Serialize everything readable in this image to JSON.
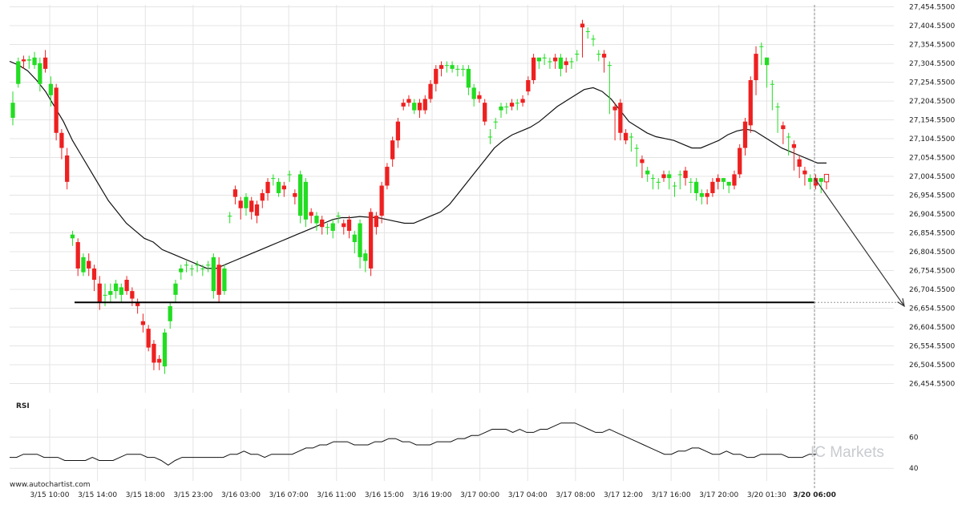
{
  "branding": {
    "site": "www.autochartist.com",
    "watermark": "IC Markets"
  },
  "colors": {
    "bull": "#22dd22",
    "bear": "#ee2020",
    "line": "#111111",
    "grid": "#e4e4e4",
    "arrow": "#333333"
  },
  "chart_data": [
    {
      "type": "candlestick",
      "title": "",
      "y_ticks": [
        "27,454.5500",
        "27,404.5500",
        "27,354.5500",
        "27,304.5500",
        "27,254.5500",
        "27,204.5500",
        "27,154.5500",
        "27,104.5500",
        "27,054.5500",
        "27,004.5500",
        "26,954.5500",
        "26,904.5500",
        "26,854.5500",
        "26,804.5500",
        "26,754.5500",
        "26,704.5500",
        "26,654.5500",
        "26,604.5500",
        "26,554.5500",
        "26,504.5500",
        "26,454.5500"
      ],
      "ylim": [
        26430,
        27460
      ],
      "x_ticks": [
        "3/15 10:00",
        "3/15 14:00",
        "3/15 18:00",
        "3/15 23:00",
        "3/16 03:00",
        "3/16 07:00",
        "3/16 11:00",
        "3/16 15:00",
        "3/16 19:00",
        "3/17 00:00",
        "3/17 04:00",
        "3/17 08:00",
        "3/17 12:00",
        "3/17 16:00",
        "3/17 20:00",
        "3/20 01:30",
        "3/20 06:00"
      ],
      "grid": true,
      "close": [
        27200,
        27310,
        27310,
        27315,
        27320,
        27305,
        27290,
        27250,
        27120,
        27080,
        26990,
        26850,
        26760,
        26790,
        26760,
        26730,
        26670,
        26690,
        26700,
        26720,
        26710,
        26700,
        26680,
        26660,
        26610,
        26550,
        26510,
        26510,
        26590,
        26660,
        26720,
        26760,
        26770,
        26760,
        26770,
        26760,
        26770,
        26790,
        26690,
        26760,
        26900,
        26950,
        26920,
        26950,
        26910,
        26900,
        26940,
        26960,
        27000,
        26990,
        26970,
        27010,
        26950,
        27010,
        26990,
        26900,
        26900,
        26870,
        26870,
        26880,
        26900,
        26870,
        26860,
        26850,
        26880,
        26800,
        26760,
        26870,
        26900,
        26980,
        27050,
        27100,
        27190,
        27200,
        27200,
        27180,
        27180,
        27210,
        27250,
        27290,
        27300,
        27300,
        27290,
        27290,
        27290,
        27240,
        27210,
        27150,
        27110,
        27150,
        27190,
        27190,
        27190,
        27200,
        27200,
        27230,
        27260,
        27320,
        27320,
        27310,
        27310,
        27320,
        27300,
        27310,
        27330,
        27400,
        27390,
        27370,
        27330,
        27320,
        27300,
        27180,
        27120,
        27100,
        27110,
        27080,
        27040,
        27020,
        27000,
        26990,
        27000,
        27010,
        26980,
        27010,
        27000,
        26990,
        26990,
        26960,
        26950,
        26960,
        26990,
        27000,
        26990,
        26980,
        27010,
        27080,
        27140,
        27260,
        27350,
        27320,
        27250,
        27190,
        27130,
        27110,
        27080,
        27030,
        27010,
        27000,
        26980,
        27000,
        26990
      ],
      "open": [
        27160,
        27250,
        27315,
        27312,
        27300,
        27250,
        27320,
        27220,
        27240,
        27120,
        27060,
        26840,
        26830,
        26750,
        26780,
        26760,
        26720,
        26690,
        26690,
        26700,
        26690,
        26730,
        26700,
        26670,
        26620,
        26600,
        26560,
        26520,
        26500,
        26620,
        26690,
        26750,
        26770,
        26760,
        26770,
        26760,
        26770,
        26700,
        26770,
        26700,
        26900,
        26970,
        26940,
        26920,
        26940,
        26930,
        26960,
        26990,
        27000,
        26960,
        26980,
        27010,
        26960,
        26900,
        26890,
        26910,
        26880,
        26890,
        26870,
        26860,
        26900,
        26880,
        26890,
        26830,
        26790,
        26780,
        26910,
        26900,
        26980,
        27030,
        27100,
        27150,
        27200,
        27210,
        27180,
        27200,
        27210,
        27250,
        27290,
        27300,
        27300,
        27290,
        27290,
        27290,
        27240,
        27210,
        27220,
        27200,
        27110,
        27150,
        27180,
        27190,
        27200,
        27200,
        27210,
        27260,
        27320,
        27310,
        27320,
        27310,
        27320,
        27290,
        27310,
        27310,
        27330,
        27410,
        27390,
        27370,
        27330,
        27330,
        27300,
        27190,
        27200,
        27120,
        27110,
        27080,
        27050,
        27010,
        27000,
        26990,
        27010,
        27000,
        26980,
        27010,
        27020,
        26990,
        26960,
        26950,
        26960,
        26990,
        27000,
        26990,
        26980,
        27010,
        27080,
        27150,
        27260,
        27330,
        27350,
        27300,
        27250,
        27190,
        27140,
        27110,
        27090,
        27050,
        27020,
        26990,
        27000,
        26990,
        27010
      ],
      "high": [
        27230,
        27320,
        27325,
        27325,
        27335,
        27320,
        27340,
        27270,
        27250,
        27130,
        27080,
        26860,
        26840,
        26800,
        26800,
        26770,
        26740,
        26720,
        26720,
        26730,
        26720,
        26740,
        26710,
        26680,
        26640,
        26610,
        26570,
        26530,
        26600,
        26670,
        26730,
        26770,
        26780,
        26770,
        26780,
        26770,
        26780,
        26800,
        26790,
        26770,
        26910,
        26980,
        26950,
        26960,
        26950,
        26940,
        26970,
        27000,
        27010,
        27000,
        26990,
        27020,
        26970,
        27020,
        27000,
        26920,
        26910,
        26900,
        26880,
        26890,
        26910,
        26890,
        26900,
        26860,
        26890,
        26810,
        26920,
        26910,
        26990,
        27040,
        27110,
        27160,
        27210,
        27220,
        27210,
        27210,
        27220,
        27260,
        27300,
        27310,
        27310,
        27310,
        27300,
        27300,
        27300,
        27250,
        27230,
        27210,
        27130,
        27160,
        27200,
        27200,
        27210,
        27210,
        27220,
        27270,
        27330,
        27320,
        27330,
        27320,
        27330,
        27330,
        27320,
        27320,
        27340,
        27420,
        27400,
        27380,
        27340,
        27340,
        27310,
        27200,
        27210,
        27130,
        27120,
        27090,
        27060,
        27030,
        27010,
        27000,
        27020,
        27020,
        26990,
        27020,
        27030,
        27000,
        27000,
        26970,
        26970,
        27000,
        27010,
        27000,
        26990,
        27020,
        27090,
        27160,
        27270,
        27350,
        27360,
        27310,
        27260,
        27200,
        27150,
        27120,
        27100,
        27060,
        27030,
        27010,
        27010,
        27000,
        27010
      ],
      "low": [
        27140,
        27240,
        27290,
        27290,
        27290,
        27230,
        27280,
        27190,
        27100,
        27050,
        26970,
        26820,
        26740,
        26740,
        26740,
        26700,
        26650,
        26660,
        26670,
        26680,
        26670,
        26690,
        26660,
        26640,
        26590,
        26540,
        26490,
        26490,
        26480,
        26600,
        26670,
        26730,
        26750,
        26740,
        26750,
        26740,
        26750,
        26680,
        26670,
        26690,
        26880,
        26930,
        26890,
        26900,
        26890,
        26880,
        26920,
        26940,
        26980,
        26950,
        26950,
        26990,
        26930,
        26880,
        26870,
        26880,
        26860,
        26850,
        26850,
        26840,
        26880,
        26850,
        26840,
        26800,
        26760,
        26750,
        26740,
        26850,
        26880,
        26970,
        27030,
        27080,
        27180,
        27190,
        27170,
        27160,
        27170,
        27200,
        27230,
        27270,
        27280,
        27280,
        27270,
        27270,
        27220,
        27190,
        27200,
        27140,
        27090,
        27130,
        27160,
        27170,
        27180,
        27180,
        27190,
        27220,
        27250,
        27290,
        27300,
        27290,
        27290,
        27270,
        27280,
        27290,
        27310,
        27320,
        27370,
        27350,
        27310,
        27280,
        27170,
        27100,
        27100,
        27090,
        27070,
        27030,
        27000,
        26990,
        26970,
        26970,
        26990,
        26970,
        26950,
        26970,
        26980,
        26960,
        26940,
        26930,
        26930,
        26950,
        26970,
        26970,
        26960,
        26970,
        27000,
        27060,
        27120,
        27220,
        27300,
        27240,
        27180,
        27120,
        27090,
        27060,
        27020,
        27000,
        26980,
        26970,
        26970,
        26960,
        26970
      ],
      "moving_average": [
        27310,
        27300,
        27285,
        27260,
        27230,
        27190,
        27150,
        27100,
        27060,
        27020,
        26980,
        26940,
        26910,
        26880,
        26860,
        26840,
        26830,
        26810,
        26800,
        26790,
        26780,
        26770,
        26760,
        26760,
        26770,
        26780,
        26790,
        26800,
        26810,
        26820,
        26830,
        26840,
        26850,
        26860,
        26870,
        26880,
        26890,
        26895,
        26895,
        26898,
        26896,
        26895,
        26890,
        26885,
        26880,
        26880,
        26890,
        26900,
        26910,
        26930,
        26960,
        26990,
        27020,
        27050,
        27080,
        27100,
        27115,
        27125,
        27135,
        27150,
        27170,
        27190,
        27205,
        27220,
        27235,
        27240,
        27230,
        27210,
        27180,
        27150,
        27135,
        27120,
        27110,
        27105,
        27100,
        27090,
        27080,
        27080,
        27090,
        27100,
        27115,
        27125,
        27130,
        27125,
        27110,
        27095,
        27080,
        27070,
        27060,
        27050,
        27040,
        27040
      ],
      "pattern": {
        "support_level": 26670,
        "projection": [
          27000,
          26660
        ]
      }
    },
    {
      "type": "line",
      "title": "RSI",
      "y_ticks": [
        "60",
        "40"
      ],
      "ylim": [
        36,
        74
      ],
      "values": [
        47,
        47,
        49,
        49,
        49,
        47,
        47,
        47,
        45,
        45,
        45,
        45,
        47,
        45,
        45,
        45,
        47,
        49,
        49,
        49,
        47,
        47,
        45,
        42,
        45,
        47,
        47,
        47,
        47,
        47,
        47,
        47,
        49,
        49,
        51,
        49,
        49,
        47,
        49,
        49,
        49,
        49,
        51,
        53,
        53,
        55,
        55,
        57,
        57,
        57,
        55,
        55,
        55,
        57,
        57,
        59,
        59,
        57,
        57,
        55,
        55,
        55,
        57,
        57,
        57,
        59,
        59,
        61,
        61,
        63,
        65,
        65,
        65,
        63,
        65,
        63,
        63,
        65,
        65,
        67,
        69,
        69,
        69,
        67,
        65,
        63,
        63,
        65,
        63,
        61,
        59,
        57,
        55,
        53,
        51,
        49,
        49,
        51,
        51,
        53,
        53,
        51,
        49,
        49,
        51,
        49,
        49,
        47,
        47,
        49,
        49,
        49,
        49,
        47,
        47,
        47,
        49,
        49
      ]
    }
  ]
}
